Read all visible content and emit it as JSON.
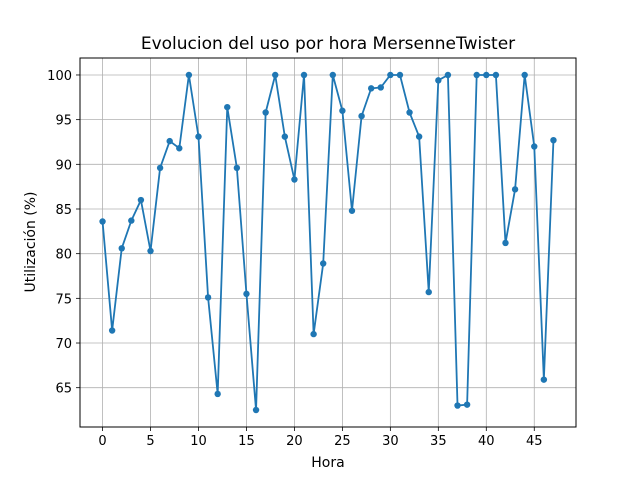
{
  "chart_data": {
    "type": "line",
    "title": "Evolucion del uso por hora MersenneTwister",
    "xlabel": "Hora",
    "ylabel": "Utilización (%)",
    "xlim": [
      -2.35,
      49.35
    ],
    "ylim": [
      60.6,
      101.9
    ],
    "xticks": [
      0,
      5,
      10,
      15,
      20,
      25,
      30,
      35,
      40,
      45
    ],
    "yticks": [
      65,
      70,
      75,
      80,
      85,
      90,
      95,
      100
    ],
    "grid": true,
    "line_color": "#1f77b4",
    "series": [
      {
        "x": [
          0,
          1,
          2,
          3,
          4,
          5,
          6,
          7,
          8,
          9,
          10,
          11,
          12,
          13,
          14,
          15,
          16,
          17,
          18,
          19,
          20,
          21,
          22,
          23,
          24,
          25,
          26,
          27,
          28,
          29,
          30,
          31,
          32,
          33,
          34,
          35,
          36,
          37,
          38,
          39,
          40,
          41,
          42,
          43,
          44,
          45,
          46,
          47
        ],
        "values": [
          83.6,
          71.4,
          80.6,
          83.7,
          86.0,
          80.3,
          89.6,
          92.6,
          91.8,
          100.0,
          93.1,
          75.1,
          64.3,
          96.4,
          89.6,
          75.5,
          62.5,
          95.8,
          100.0,
          93.1,
          88.3,
          100.0,
          71.0,
          78.9,
          100.0,
          96.0,
          84.8,
          95.4,
          98.5,
          98.6,
          100.0,
          100.0,
          95.8,
          93.1,
          75.7,
          99.4,
          100.0,
          63.0,
          63.1,
          100.0,
          100.0,
          100.0,
          81.2,
          87.2,
          100.0,
          92.0,
          65.9,
          92.7
        ]
      }
    ]
  }
}
